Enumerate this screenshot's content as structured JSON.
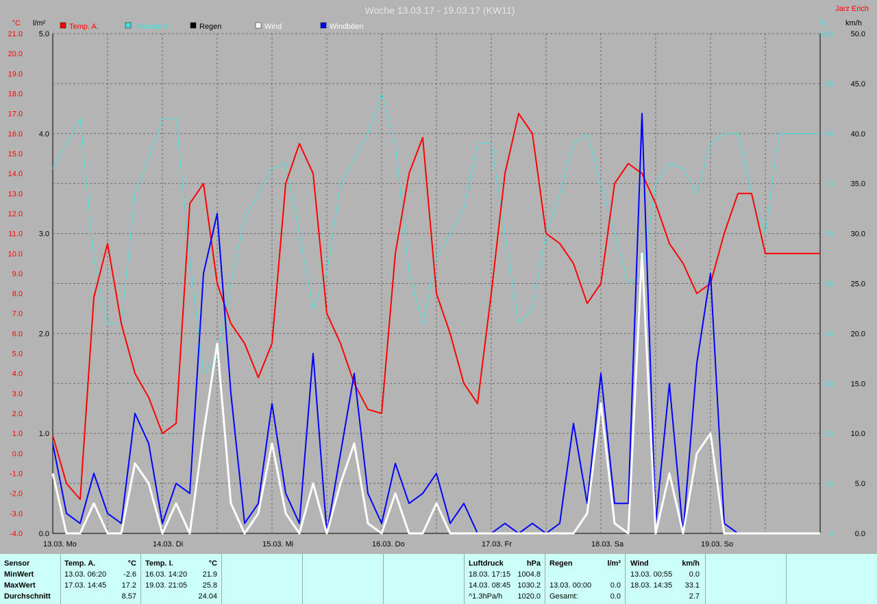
{
  "title": "Woche 13.03.17 - 19.03.17 (KW11)",
  "author": "Jarz Erich",
  "colors": {
    "temp": "#ff0000",
    "humidity": "#40e0e0",
    "rain": "#000000",
    "wind": "#ffffff",
    "gust": "#0000ff",
    "background": "#b4b4b4",
    "grid": "#6a6a6a",
    "footer": "#ccfff7"
  },
  "axes": {
    "temp_unit": "°C",
    "rain_unit": "l/m²",
    "humidity_unit": "%",
    "wind_unit": "km/h",
    "temp_ticks": [
      "21.0",
      "20.0",
      "19.0",
      "18.0",
      "17.0",
      "16.0",
      "15.0",
      "14.0",
      "13.0",
      "12.0",
      "11.0",
      "10.0",
      "9.0",
      "8.0",
      "7.0",
      "6.0",
      "5.0",
      "4.0",
      "3.0",
      "2.0",
      "1.0",
      "0.0",
      "-1.0",
      "-2.0",
      "-3.0",
      "-4.0"
    ],
    "rain_ticks": [
      "5.0",
      "4.0",
      "3.0",
      "2.0",
      "1.0",
      "0.0"
    ],
    "humidity_ticks": [
      "100",
      "90",
      "80",
      "70",
      "60",
      "50",
      "40",
      "30",
      "20",
      "10",
      "0"
    ],
    "wind_ticks": [
      "50.0",
      "45.0",
      "40.0",
      "35.0",
      "30.0",
      "25.0",
      "20.0",
      "15.0",
      "10.0",
      "5.0",
      "0.0"
    ],
    "day_labels": [
      "13.03.  Mo",
      "14.03.  Di",
      "15.03.  Mi",
      "16.03.  Do",
      "17.03.  Fr",
      "18.03.  Sa",
      "19.03.  So"
    ]
  },
  "legend": [
    {
      "label": "Temp. A.",
      "color": "#ff0000",
      "text_color": "#ff0000"
    },
    {
      "label": "Feuchte A.",
      "color": "#40e0e0",
      "text_color": "#40e0e0"
    },
    {
      "label": "Regen",
      "color": "#000000",
      "text_color": "#000000"
    },
    {
      "label": "Wind",
      "color": "#ffffff",
      "text_color": "#ffffff"
    },
    {
      "label": "Windböen",
      "color": "#0000ff",
      "text_color": "#ffffff"
    }
  ],
  "chart_data": {
    "type": "line",
    "x_unit": "hours since 13.03. 00:00",
    "ranges": {
      "temp": [
        -4,
        21
      ],
      "rain": [
        0,
        5
      ],
      "humidity": [
        0,
        100
      ],
      "wind": [
        0,
        50
      ]
    },
    "series": [
      {
        "name": "Temp. A.",
        "axis": "temp",
        "color": "#ff0000",
        "x": [
          0,
          3,
          6,
          9,
          12,
          15,
          18,
          21,
          24,
          27,
          30,
          33,
          36,
          39,
          42,
          45,
          48,
          51,
          54,
          57,
          60,
          63,
          66,
          69,
          72,
          75,
          78,
          81,
          84,
          87,
          90,
          93,
          96,
          99,
          102,
          105,
          108,
          111,
          114,
          117,
          120,
          123,
          126,
          129,
          132,
          135,
          138,
          141,
          144,
          147,
          150,
          153,
          156,
          159,
          162,
          165,
          168
        ],
        "y": [
          0.9,
          -1.5,
          -2.3,
          7.8,
          10.5,
          6.5,
          4.0,
          2.8,
          1.0,
          1.5,
          12.5,
          13.5,
          8.5,
          6.5,
          5.5,
          3.8,
          5.5,
          13.5,
          15.5,
          14.0,
          7.0,
          5.5,
          3.5,
          2.2,
          2.0,
          10.0,
          14.0,
          15.8,
          8.0,
          6.0,
          3.5,
          2.5,
          8.0,
          14.0,
          17.0,
          16.0,
          11.0,
          10.5,
          9.5,
          7.5,
          8.5,
          13.5,
          14.5,
          14.0,
          12.5,
          10.5,
          9.5,
          8.0,
          8.5,
          11.0,
          13.0,
          13.0,
          10.0,
          10.0,
          10.0,
          10.0,
          10.0
        ]
      },
      {
        "name": "Feuchte A.",
        "axis": "humidity",
        "color": "#40e0e0",
        "x": [
          0,
          3,
          6,
          9,
          12,
          15,
          18,
          21,
          24,
          27,
          30,
          33,
          36,
          39,
          42,
          45,
          48,
          51,
          54,
          57,
          60,
          63,
          66,
          69,
          72,
          75,
          78,
          81,
          84,
          87,
          90,
          93,
          96,
          99,
          102,
          105,
          108,
          111,
          114,
          117,
          120,
          123,
          126,
          129,
          132,
          135,
          138,
          141,
          144,
          147,
          150,
          153,
          156,
          159,
          162,
          165,
          168
        ],
        "y": [
          73,
          78,
          83,
          55,
          42,
          42,
          68,
          75,
          83,
          83,
          55,
          32,
          35,
          50,
          63,
          68,
          73,
          74,
          60,
          45,
          52,
          70,
          75,
          80,
          88,
          78,
          52,
          42,
          55,
          60,
          65,
          78,
          78,
          60,
          42,
          45,
          60,
          68,
          78,
          80,
          70,
          60,
          50,
          52,
          70,
          74,
          73,
          68,
          78,
          80,
          80,
          68,
          60,
          80,
          80,
          80,
          80
        ]
      },
      {
        "name": "Wind",
        "axis": "wind",
        "color": "#ffffff",
        "x": [
          0,
          3,
          6,
          9,
          12,
          15,
          18,
          21,
          24,
          27,
          30,
          33,
          36,
          39,
          42,
          45,
          48,
          51,
          54,
          57,
          60,
          63,
          66,
          69,
          72,
          75,
          78,
          81,
          84,
          87,
          90,
          93,
          96,
          99,
          102,
          105,
          108,
          111,
          114,
          117,
          120,
          123,
          126,
          129,
          132,
          135,
          138,
          141,
          144,
          147,
          150,
          153,
          156,
          159,
          162,
          165,
          168
        ],
        "y": [
          6,
          0,
          0,
          3,
          0,
          0,
          7,
          5,
          0,
          3,
          0,
          10,
          19,
          3,
          0,
          2,
          9,
          2,
          0,
          5,
          0,
          5,
          9,
          1,
          0,
          4,
          0,
          0,
          3,
          0,
          0,
          0,
          0,
          0,
          0,
          0,
          0,
          0,
          0,
          2,
          13,
          1,
          0,
          28,
          0,
          6,
          0,
          8,
          10,
          0,
          0,
          0,
          0,
          0,
          0,
          0,
          0
        ]
      },
      {
        "name": "Windböen",
        "axis": "wind",
        "color": "#0000ff",
        "x": [
          0,
          3,
          6,
          9,
          12,
          15,
          18,
          21,
          24,
          27,
          30,
          33,
          36,
          39,
          42,
          45,
          48,
          51,
          54,
          57,
          60,
          63,
          66,
          69,
          72,
          75,
          78,
          81,
          84,
          87,
          90,
          93,
          96,
          99,
          102,
          105,
          108,
          111,
          114,
          117,
          120,
          123,
          126,
          129,
          132,
          135,
          138,
          141,
          144,
          147,
          150,
          153,
          156,
          159,
          162,
          165,
          168
        ],
        "y": [
          9,
          2,
          1,
          6,
          2,
          1,
          12,
          9,
          1,
          5,
          4,
          26,
          32,
          14,
          1,
          3,
          13,
          4,
          1,
          18,
          0,
          8,
          16,
          4,
          1,
          7,
          3,
          4,
          6,
          1,
          3,
          0,
          0,
          1,
          0,
          1,
          0,
          1,
          11,
          3,
          16,
          3,
          3,
          42,
          1,
          15,
          0,
          17,
          26,
          1,
          0,
          0,
          0,
          0,
          0,
          0,
          0
        ]
      }
    ]
  },
  "footer": {
    "sensor": {
      "header": "Sensor",
      "rows": [
        "MinWert",
        "MaxWert",
        "Durchschnitt"
      ]
    },
    "temp_a": {
      "header": "Temp. A.",
      "unit": "°C",
      "rows": [
        {
          "time": "13.03.  06:20",
          "value": "-2.6"
        },
        {
          "time": "17.03.  14:45",
          "value": "17.2"
        },
        {
          "time": "",
          "value": "8.57"
        }
      ]
    },
    "temp_i": {
      "header": "Temp. I.",
      "unit": "°C",
      "rows": [
        {
          "time": "16.03.  14:20",
          "value": "21.9"
        },
        {
          "time": "19.03.  21:05",
          "value": "25.8"
        },
        {
          "time": "",
          "value": "24.04"
        }
      ]
    },
    "luftdruck": {
      "header": "Luftdruck",
      "unit": "hPa",
      "rows": [
        {
          "time": "18.03.  17:15",
          "value": "1004.8"
        },
        {
          "time": "14.03.  08:45",
          "value": "1030.2"
        },
        {
          "time": "^1.3hPa/h",
          "value": "1020.0"
        }
      ]
    },
    "regen": {
      "header": "Regen",
      "unit": "l/m²",
      "rows": [
        {
          "time": "",
          "value": ""
        },
        {
          "time": "13.03.  00:00",
          "value": "0.0"
        },
        {
          "time": "Gesamt:",
          "value": "0.0"
        }
      ]
    },
    "wind": {
      "header": "Wind",
      "unit": "km/h",
      "rows": [
        {
          "time": "13.03.  00:55",
          "value": "0.0"
        },
        {
          "time": "18.03.  14:35",
          "value": "33.1"
        },
        {
          "time": "",
          "value": "2.7"
        }
      ]
    }
  }
}
